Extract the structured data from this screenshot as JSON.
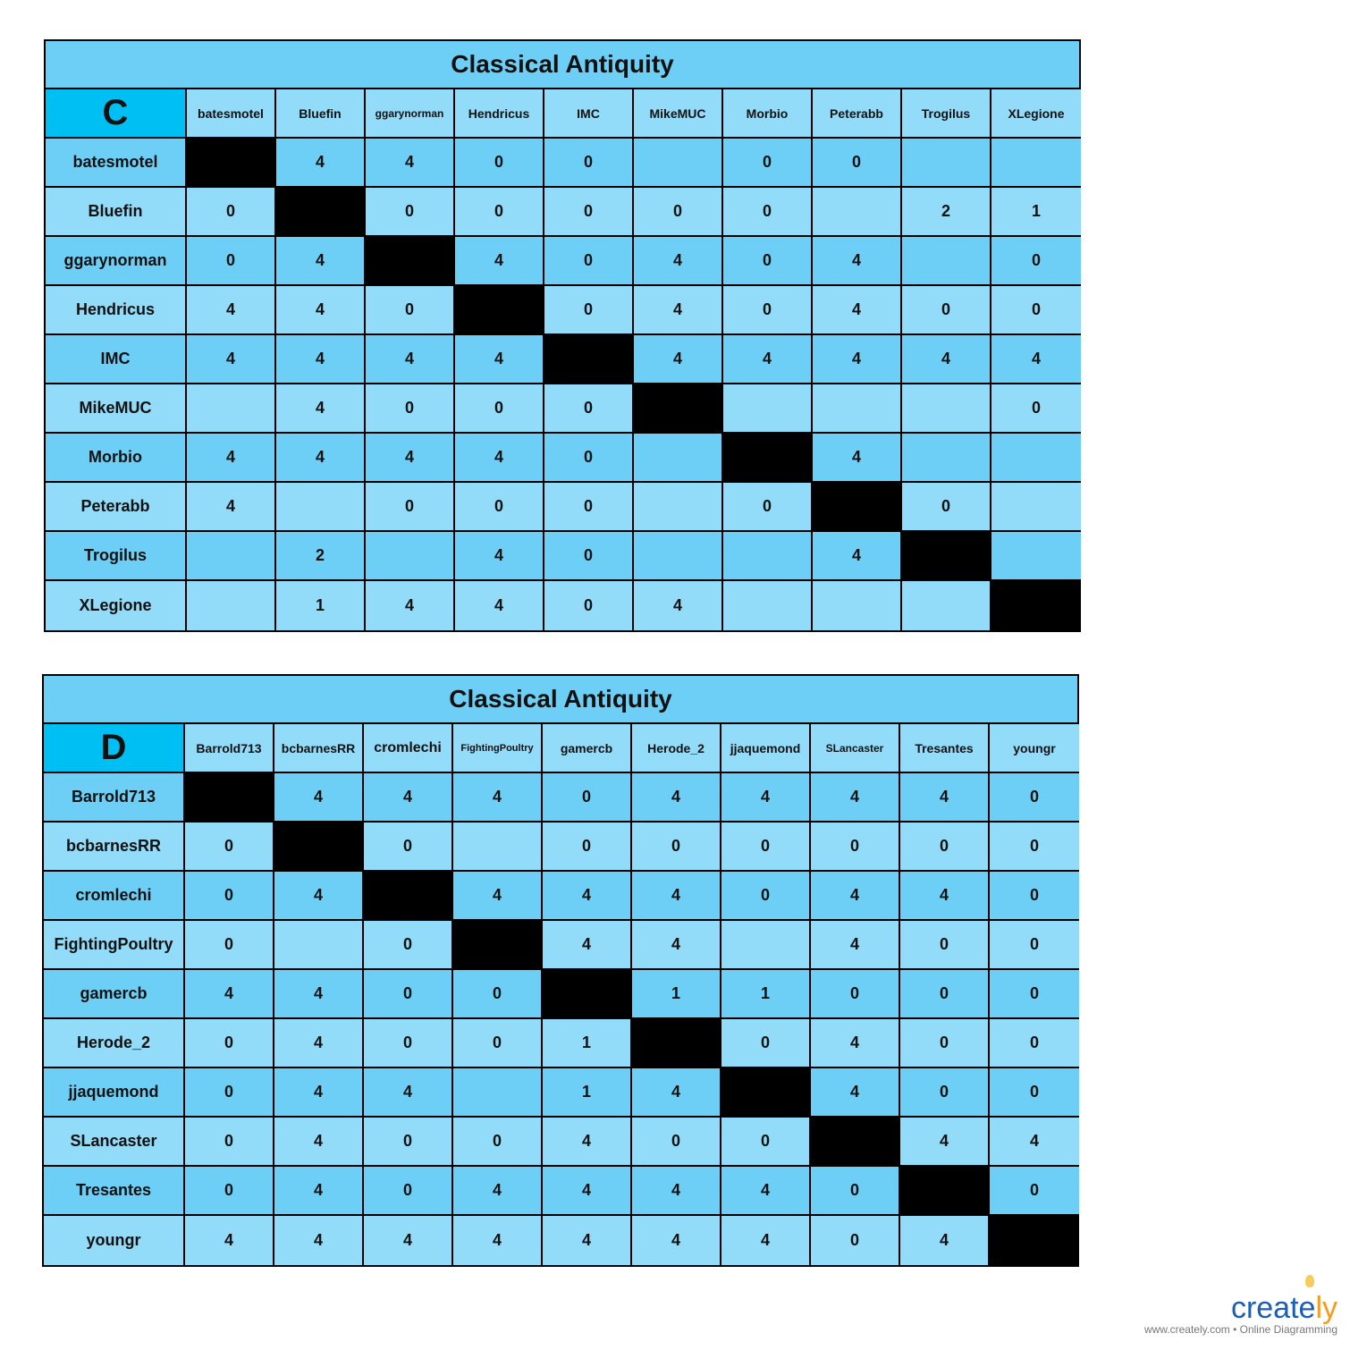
{
  "tables": [
    {
      "title": "Classical Antiquity",
      "corner": "C",
      "columns": [
        "batesmotel",
        "Bluefin",
        "ggarynorman",
        "Hendricus",
        "IMC",
        "MikeMUC",
        "Morbio",
        "Peterabb",
        "Trogilus",
        "XLegione"
      ],
      "rows": [
        {
          "name": "batesmotel",
          "values": [
            null,
            "4",
            "4",
            "0",
            "0",
            "",
            "0",
            "0",
            "",
            ""
          ]
        },
        {
          "name": "Bluefin",
          "values": [
            "0",
            null,
            "0",
            "0",
            "0",
            "0",
            "0",
            "",
            "2",
            "1"
          ]
        },
        {
          "name": "ggarynorman",
          "values": [
            "0",
            "4",
            null,
            "4",
            "0",
            "4",
            "0",
            "4",
            "",
            "0"
          ]
        },
        {
          "name": "Hendricus",
          "values": [
            "4",
            "4",
            "0",
            null,
            "0",
            "4",
            "0",
            "4",
            "0",
            "0"
          ]
        },
        {
          "name": "IMC",
          "values": [
            "4",
            "4",
            "4",
            "4",
            null,
            "4",
            "4",
            "4",
            "4",
            "4"
          ]
        },
        {
          "name": "MikeMUC",
          "values": [
            "",
            "4",
            "0",
            "0",
            "0",
            null,
            "",
            "",
            "",
            "0"
          ]
        },
        {
          "name": "Morbio",
          "values": [
            "4",
            "4",
            "4",
            "4",
            "0",
            "",
            null,
            "4",
            "",
            ""
          ]
        },
        {
          "name": "Peterabb",
          "values": [
            "4",
            "",
            "0",
            "0",
            "0",
            "",
            "0",
            null,
            "0",
            ""
          ]
        },
        {
          "name": "Trogilus",
          "values": [
            "",
            "2",
            "",
            "4",
            "0",
            "",
            "",
            "4",
            null,
            ""
          ]
        },
        {
          "name": "XLegione",
          "values": [
            "",
            "1",
            "4",
            "4",
            "0",
            "4",
            "",
            "",
            "",
            null
          ]
        }
      ]
    },
    {
      "title": "Classical Antiquity",
      "corner": "D",
      "columns": [
        "Barrold713",
        "bcbarnesRR",
        "cromlechi",
        "FightingPoultry",
        "gamercb",
        "Herode_2",
        "jjaquemond",
        "SLancaster",
        "Tresantes",
        "youngr"
      ],
      "rows": [
        {
          "name": "Barrold713",
          "values": [
            null,
            "4",
            "4",
            "4",
            "0",
            "4",
            "4",
            "4",
            "4",
            "0"
          ]
        },
        {
          "name": "bcbarnesRR",
          "values": [
            "0",
            null,
            "0",
            "",
            "0",
            "0",
            "0",
            "0",
            "0",
            "0"
          ]
        },
        {
          "name": "cromlechi",
          "values": [
            "0",
            "4",
            null,
            "4",
            "4",
            "4",
            "0",
            "4",
            "4",
            "0"
          ]
        },
        {
          "name": "FightingPoultry",
          "values": [
            "0",
            "",
            "0",
            null,
            "4",
            "4",
            "",
            "4",
            "0",
            "0"
          ]
        },
        {
          "name": "gamercb",
          "values": [
            "4",
            "4",
            "0",
            "0",
            null,
            "1",
            "1",
            "0",
            "0",
            "0"
          ]
        },
        {
          "name": "Herode_2",
          "values": [
            "0",
            "4",
            "0",
            "0",
            "1",
            null,
            "0",
            "4",
            "0",
            "0"
          ]
        },
        {
          "name": "jjaquemond",
          "values": [
            "0",
            "4",
            "4",
            "",
            "1",
            "4",
            null,
            "4",
            "0",
            "0"
          ]
        },
        {
          "name": "SLancaster",
          "values": [
            "0",
            "4",
            "0",
            "0",
            "4",
            "0",
            "0",
            null,
            "4",
            "4"
          ]
        },
        {
          "name": "Tresantes",
          "values": [
            "0",
            "4",
            "0",
            "4",
            "4",
            "4",
            "4",
            "0",
            null,
            "0"
          ]
        },
        {
          "name": "youngr",
          "values": [
            "4",
            "4",
            "4",
            "4",
            "4",
            "4",
            "4",
            "0",
            "4",
            null
          ]
        }
      ]
    }
  ],
  "colors": {
    "title": "#6dcff6",
    "corner": "#00bff3",
    "dark_row": "#6dcff6",
    "light_row": "#92dbf9",
    "diagonal": "#000000"
  },
  "logo": {
    "brand": "creately",
    "tagline": "www.creately.com • Online Diagramming"
  }
}
